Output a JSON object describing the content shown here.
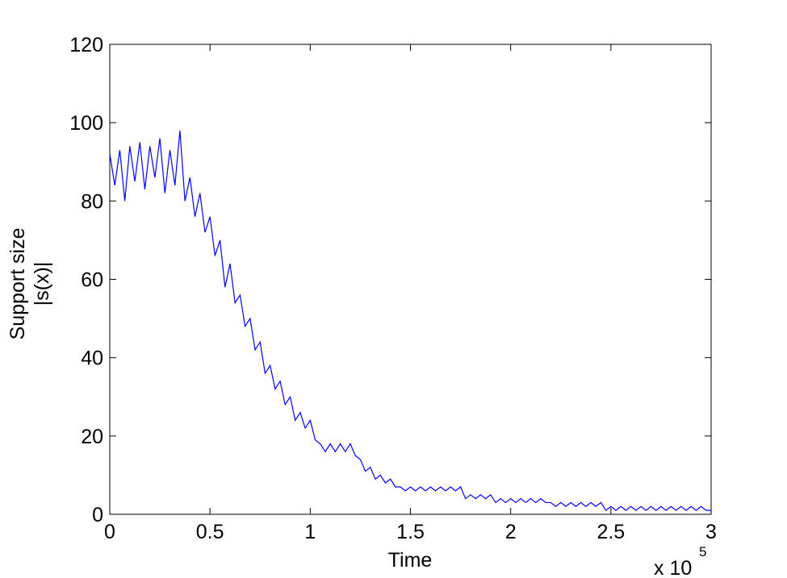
{
  "chart_data": {
    "type": "line",
    "xlabel": "Time",
    "ylabel": [
      "Support size",
      "|s(x)|"
    ],
    "x_multiplier": {
      "base": "x 10",
      "exponent": "5"
    },
    "xlim": [
      0,
      3
    ],
    "ylim": [
      0,
      120
    ],
    "xticks": [
      0,
      0.5,
      1,
      1.5,
      2,
      2.5,
      3
    ],
    "yticks": [
      0,
      20,
      40,
      60,
      80,
      100,
      120
    ],
    "grid": false,
    "series": [
      {
        "color": "#0000ff",
        "x": [
          0,
          0.025,
          0.05,
          0.075,
          0.1,
          0.125,
          0.15,
          0.175,
          0.2,
          0.225,
          0.25,
          0.275,
          0.3,
          0.325,
          0.35,
          0.375,
          0.4,
          0.425,
          0.45,
          0.475,
          0.5,
          0.525,
          0.55,
          0.575,
          0.6,
          0.625,
          0.65,
          0.675,
          0.7,
          0.725,
          0.75,
          0.775,
          0.8,
          0.825,
          0.85,
          0.875,
          0.9,
          0.925,
          0.95,
          0.975,
          1,
          1.025,
          1.05,
          1.075,
          1.1,
          1.125,
          1.15,
          1.175,
          1.2,
          1.225,
          1.25,
          1.275,
          1.3,
          1.325,
          1.35,
          1.375,
          1.4,
          1.425,
          1.45,
          1.475,
          1.5,
          1.525,
          1.55,
          1.575,
          1.6,
          1.625,
          1.65,
          1.675,
          1.7,
          1.725,
          1.75,
          1.775,
          1.8,
          1.825,
          1.85,
          1.875,
          1.9,
          1.925,
          1.95,
          1.975,
          2,
          2.025,
          2.05,
          2.075,
          2.1,
          2.125,
          2.15,
          2.175,
          2.2,
          2.225,
          2.25,
          2.275,
          2.3,
          2.325,
          2.35,
          2.375,
          2.4,
          2.425,
          2.45,
          2.475,
          2.5,
          2.525,
          2.55,
          2.575,
          2.6,
          2.625,
          2.65,
          2.675,
          2.7,
          2.725,
          2.75,
          2.775,
          2.8,
          2.825,
          2.85,
          2.875,
          2.9,
          2.925,
          2.95,
          2.975,
          3
        ],
        "values": [
          92,
          84,
          93,
          80,
          94,
          85,
          95,
          83,
          94,
          86,
          96,
          82,
          93,
          84,
          98,
          80,
          86,
          76,
          82,
          72,
          76,
          66,
          70,
          58,
          64,
          54,
          56,
          48,
          50,
          42,
          44,
          36,
          38,
          32,
          34,
          28,
          30,
          24,
          26,
          22,
          24,
          19,
          18,
          16,
          18,
          16,
          18,
          16,
          18,
          15,
          14,
          11,
          12,
          9,
          10,
          8,
          9,
          7,
          7,
          6,
          7,
          6,
          7,
          6,
          7,
          6,
          7,
          6,
          7,
          6,
          7,
          4,
          5,
          4,
          5,
          4,
          5,
          3,
          4,
          3,
          4,
          3,
          4,
          3,
          4,
          3,
          4,
          3,
          3,
          2,
          3,
          2,
          3,
          2,
          3,
          2,
          3,
          2,
          3,
          1,
          2,
          1,
          2,
          1,
          2,
          1,
          2,
          1,
          2,
          1,
          2,
          1,
          2,
          1,
          2,
          1,
          2,
          1,
          2,
          1,
          1
        ]
      }
    ]
  }
}
